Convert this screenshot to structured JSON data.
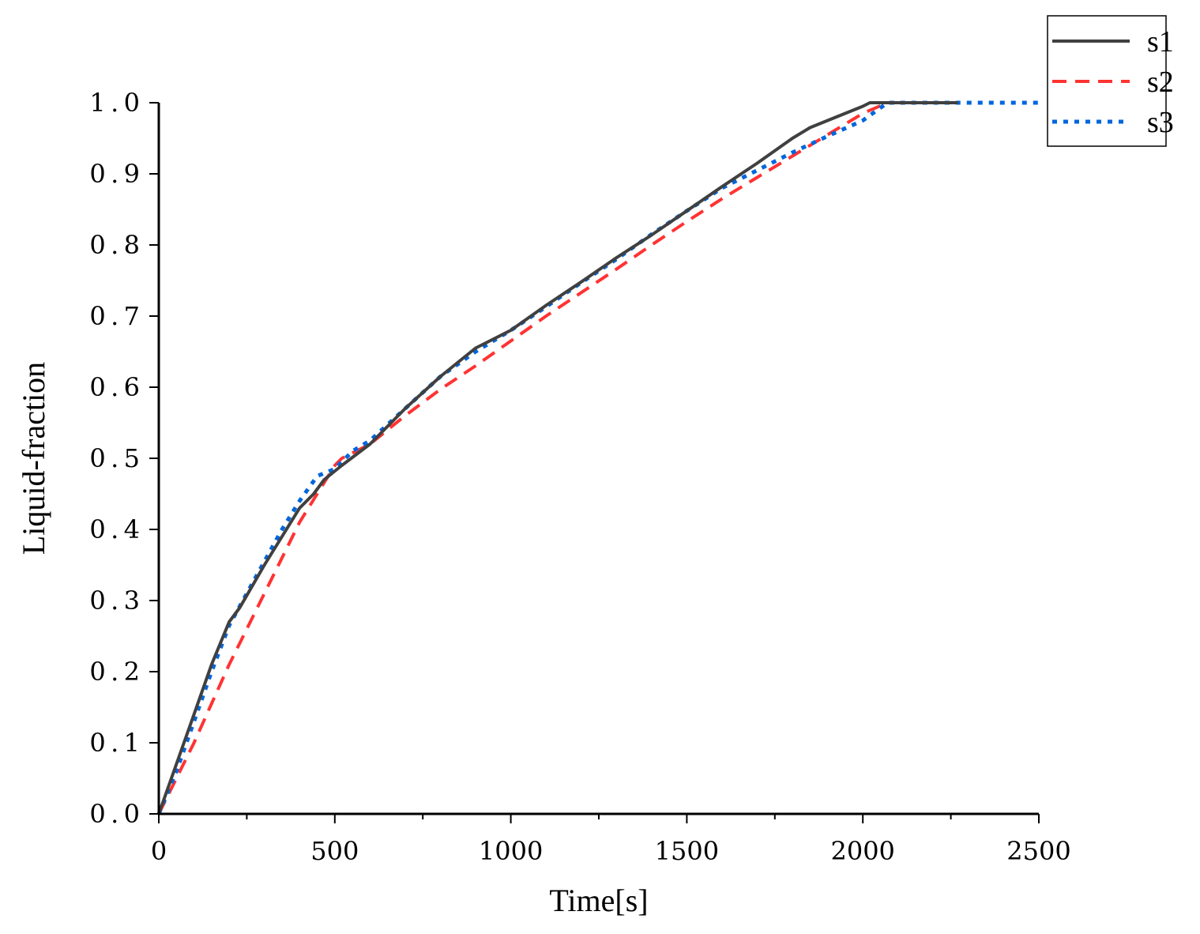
{
  "chart_data": {
    "type": "line",
    "title": "",
    "xlabel": "Time[s]",
    "ylabel": "Liquid-fraction",
    "xlim": [
      0,
      2500
    ],
    "ylim": [
      0,
      1.0
    ],
    "x_ticks": [
      "0",
      "500",
      "1000",
      "1500",
      "2000",
      "2500"
    ],
    "y_ticks": [
      "0.0",
      "0.1",
      "0.2",
      "0.3",
      "0.4",
      "0.5",
      "0.6",
      "0.7",
      "0.8",
      "0.9",
      "1.0"
    ],
    "grid": false,
    "legend_position": "top-right",
    "series": [
      {
        "name": "s1",
        "color": "#404040",
        "style": "solid",
        "x": [
          0,
          50,
          100,
          150,
          200,
          230,
          300,
          350,
          400,
          440,
          470,
          520,
          600,
          700,
          800,
          900,
          940,
          1000,
          1100,
          1200,
          1300,
          1400,
          1500,
          1600,
          1700,
          1800,
          1850,
          1900,
          2000,
          2020,
          2270
        ],
        "y": [
          0,
          0.07,
          0.14,
          0.21,
          0.27,
          0.29,
          0.35,
          0.39,
          0.43,
          0.45,
          0.47,
          0.49,
          0.52,
          0.57,
          0.615,
          0.655,
          0.665,
          0.68,
          0.715,
          0.748,
          0.782,
          0.814,
          0.848,
          0.882,
          0.915,
          0.95,
          0.965,
          0.975,
          0.995,
          1.0,
          1.0
        ]
      },
      {
        "name": "s2",
        "color": "#ff3333",
        "style": "dashed",
        "x": [
          0,
          50,
          100,
          150,
          200,
          250,
          300,
          350,
          400,
          450,
          500,
          520,
          600,
          700,
          800,
          900,
          1000,
          1100,
          1200,
          1300,
          1400,
          1500,
          1600,
          1700,
          1800,
          1900,
          2000,
          2070,
          2120
        ],
        "y": [
          0,
          0.05,
          0.1,
          0.155,
          0.21,
          0.26,
          0.31,
          0.36,
          0.41,
          0.45,
          0.49,
          0.5,
          0.52,
          0.56,
          0.597,
          0.63,
          0.665,
          0.7,
          0.733,
          0.766,
          0.8,
          0.833,
          0.865,
          0.895,
          0.925,
          0.955,
          0.985,
          1.0,
          1.0
        ]
      },
      {
        "name": "s3",
        "color": "#0066dd",
        "style": "dotted",
        "x": [
          0,
          50,
          100,
          150,
          200,
          250,
          300,
          350,
          400,
          450,
          500,
          550,
          600,
          700,
          800,
          900,
          1000,
          1100,
          1200,
          1300,
          1400,
          1500,
          1600,
          1700,
          1800,
          1900,
          2000,
          2070,
          2500
        ],
        "y": [
          0,
          0.06,
          0.13,
          0.2,
          0.265,
          0.31,
          0.355,
          0.4,
          0.44,
          0.475,
          0.485,
          0.51,
          0.525,
          0.57,
          0.615,
          0.65,
          0.68,
          0.713,
          0.747,
          0.78,
          0.815,
          0.848,
          0.88,
          0.905,
          0.93,
          0.953,
          0.975,
          1.0,
          1.0
        ]
      }
    ]
  }
}
